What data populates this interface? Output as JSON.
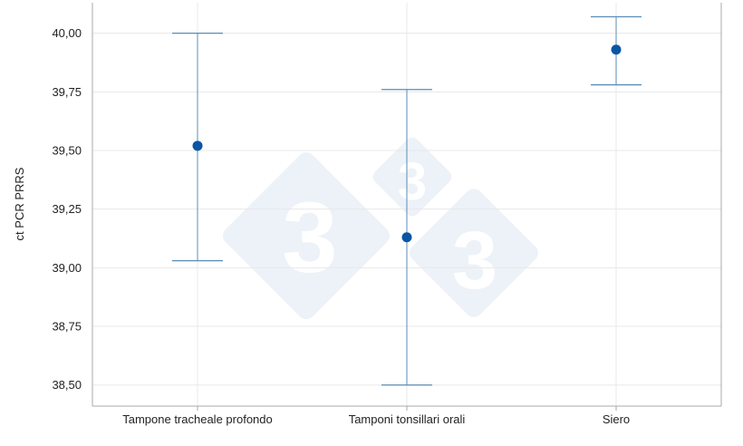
{
  "chart_data": {
    "type": "scatter",
    "subtype": "error-bar",
    "title": "",
    "xlabel": "",
    "ylabel": "ct PCR PRRS",
    "categories": [
      "Tampone tracheale profondo",
      "Tamponi tonsillari orali",
      "Siero"
    ],
    "values": [
      39.52,
      39.13,
      39.93
    ],
    "lower": [
      39.03,
      38.5,
      39.78
    ],
    "upper": [
      40.0,
      39.76,
      40.07
    ],
    "ylim": [
      38.41,
      40.13
    ],
    "yticks": [
      38.5,
      38.75,
      39.0,
      39.25,
      39.5,
      39.75,
      40.0
    ],
    "ytick_labels": [
      "38,50",
      "38,75",
      "39,00",
      "39,25",
      "39,50",
      "39,75",
      "40,00"
    ],
    "grid": true,
    "legend": "none",
    "colors": {
      "point": "#0a55a4",
      "errorbar": "#5b8db5",
      "grid": "#e8e8e8",
      "axis": "#aaaaaa",
      "watermark": "#edf2f8"
    }
  }
}
